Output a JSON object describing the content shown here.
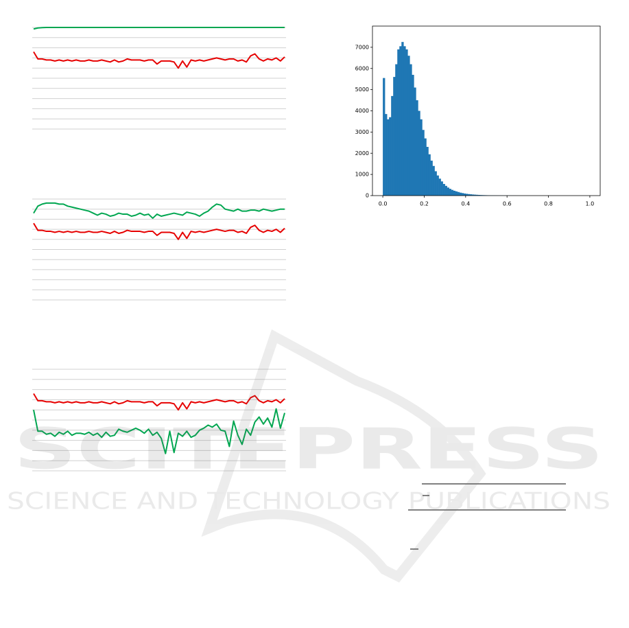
{
  "chart_data": [
    {
      "type": "line",
      "categories": [
        null,
        null,
        null,
        null,
        null,
        null,
        null,
        null,
        null,
        null,
        null,
        null,
        null,
        null,
        null,
        null,
        null,
        null,
        null,
        null,
        null,
        null,
        null,
        null,
        null,
        null,
        null,
        null,
        null,
        null,
        null,
        null,
        null,
        null,
        null,
        null,
        null,
        null,
        null,
        null,
        null,
        null,
        null,
        null,
        null,
        null,
        null,
        null,
        null,
        null,
        null,
        null,
        null,
        null,
        null,
        null,
        null,
        null,
        null,
        null
      ],
      "ylim": [
        0,
        10
      ],
      "yticks": [
        0,
        1,
        2,
        3,
        4,
        5,
        6,
        7,
        8,
        9,
        10
      ],
      "grid": true,
      "series": [
        {
          "color": "#00a650",
          "values": [
            9.85,
            9.95,
            9.98,
            10,
            10,
            10,
            10,
            10,
            10,
            10,
            10,
            10,
            10,
            10,
            10,
            10,
            10,
            10,
            10,
            10,
            10,
            10,
            10,
            10,
            10,
            10,
            10,
            10,
            10,
            10,
            10,
            10,
            10,
            10,
            10,
            10,
            10,
            10,
            10,
            10,
            10,
            10,
            10,
            10,
            10,
            10,
            10,
            10,
            10,
            10,
            10,
            10,
            10,
            10,
            10,
            10,
            10,
            10,
            10,
            10
          ]
        },
        {
          "color": "#e60000",
          "values": [
            7.6,
            6.9,
            6.9,
            6.8,
            6.8,
            6.7,
            6.8,
            6.7,
            6.8,
            6.7,
            6.8,
            6.7,
            6.7,
            6.8,
            6.7,
            6.7,
            6.8,
            6.7,
            6.6,
            6.8,
            6.6,
            6.7,
            6.9,
            6.8,
            6.8,
            6.8,
            6.7,
            6.8,
            6.8,
            6.4,
            6.7,
            6.7,
            6.7,
            6.6,
            6.0,
            6.7,
            6.1,
            6.8,
            6.7,
            6.8,
            6.7,
            6.8,
            6.9,
            7.0,
            6.9,
            6.8,
            6.9,
            6.9,
            6.7,
            6.8,
            6.6,
            7.2,
            7.4,
            6.9,
            6.7,
            6.9,
            6.8,
            7.0,
            6.7,
            7.1
          ]
        }
      ]
    },
    {
      "type": "line",
      "categories": [
        null,
        null,
        null,
        null,
        null,
        null,
        null,
        null,
        null,
        null,
        null,
        null,
        null,
        null,
        null,
        null,
        null,
        null,
        null,
        null,
        null,
        null,
        null,
        null,
        null,
        null,
        null,
        null,
        null,
        null,
        null,
        null,
        null,
        null,
        null,
        null,
        null,
        null,
        null,
        null,
        null,
        null,
        null,
        null,
        null,
        null,
        null,
        null,
        null,
        null,
        null,
        null,
        null,
        null,
        null,
        null,
        null,
        null,
        null,
        null
      ],
      "ylim": [
        0,
        10
      ],
      "yticks": [
        0,
        1,
        2,
        3,
        4,
        5,
        6,
        7,
        8,
        9,
        10
      ],
      "grid": true,
      "series": [
        {
          "color": "#00a650",
          "values": [
            8.6,
            9.3,
            9.5,
            9.6,
            9.6,
            9.6,
            9.5,
            9.5,
            9.3,
            9.2,
            9.1,
            9.0,
            8.9,
            8.8,
            8.6,
            8.4,
            8.6,
            8.5,
            8.3,
            8.4,
            8.6,
            8.5,
            8.5,
            8.3,
            8.4,
            8.6,
            8.4,
            8.5,
            8.1,
            8.5,
            8.3,
            8.4,
            8.5,
            8.6,
            8.5,
            8.4,
            8.7,
            8.6,
            8.5,
            8.3,
            8.6,
            8.8,
            9.2,
            9.5,
            9.4,
            9.0,
            8.9,
            8.8,
            9.0,
            8.8,
            8.8,
            8.9,
            8.9,
            8.8,
            9.0,
            8.9,
            8.8,
            8.9,
            9.0,
            9.0
          ]
        },
        {
          "color": "#e60000",
          "values": [
            7.6,
            6.9,
            6.9,
            6.8,
            6.8,
            6.7,
            6.8,
            6.7,
            6.8,
            6.7,
            6.8,
            6.7,
            6.7,
            6.8,
            6.7,
            6.7,
            6.8,
            6.7,
            6.6,
            6.8,
            6.6,
            6.7,
            6.9,
            6.8,
            6.8,
            6.8,
            6.7,
            6.8,
            6.8,
            6.4,
            6.7,
            6.7,
            6.7,
            6.6,
            6.0,
            6.7,
            6.1,
            6.8,
            6.7,
            6.8,
            6.7,
            6.8,
            6.9,
            7.0,
            6.9,
            6.8,
            6.9,
            6.9,
            6.7,
            6.8,
            6.6,
            7.2,
            7.4,
            6.9,
            6.7,
            6.9,
            6.8,
            7.0,
            6.7,
            7.1
          ]
        }
      ]
    },
    {
      "type": "line",
      "categories": [
        null,
        null,
        null,
        null,
        null,
        null,
        null,
        null,
        null,
        null,
        null,
        null,
        null,
        null,
        null,
        null,
        null,
        null,
        null,
        null,
        null,
        null,
        null,
        null,
        null,
        null,
        null,
        null,
        null,
        null,
        null,
        null,
        null,
        null,
        null,
        null,
        null,
        null,
        null,
        null,
        null,
        null,
        null,
        null,
        null,
        null,
        null,
        null,
        null,
        null,
        null,
        null,
        null,
        null,
        null,
        null,
        null,
        null,
        null,
        null
      ],
      "ylim": [
        0,
        10
      ],
      "yticks": [
        0,
        1,
        2,
        3,
        4,
        5,
        6,
        7,
        8,
        9,
        10
      ],
      "grid": true,
      "series": [
        {
          "color": "#e60000",
          "values": [
            7.6,
            6.9,
            6.9,
            6.8,
            6.8,
            6.7,
            6.8,
            6.7,
            6.8,
            6.7,
            6.8,
            6.7,
            6.7,
            6.8,
            6.7,
            6.7,
            6.8,
            6.7,
            6.6,
            6.8,
            6.6,
            6.7,
            6.9,
            6.8,
            6.8,
            6.8,
            6.7,
            6.8,
            6.8,
            6.4,
            6.7,
            6.7,
            6.7,
            6.6,
            6.0,
            6.7,
            6.1,
            6.8,
            6.7,
            6.8,
            6.7,
            6.8,
            6.9,
            7.0,
            6.9,
            6.8,
            6.9,
            6.9,
            6.7,
            6.8,
            6.6,
            7.2,
            7.4,
            6.9,
            6.7,
            6.9,
            6.8,
            7.0,
            6.7,
            7.1
          ]
        },
        {
          "color": "#00a650",
          "values": [
            6.0,
            3.9,
            3.9,
            3.6,
            3.7,
            3.4,
            3.8,
            3.6,
            3.9,
            3.5,
            3.7,
            3.7,
            3.6,
            3.8,
            3.5,
            3.7,
            3.3,
            3.8,
            3.4,
            3.5,
            4.1,
            3.9,
            3.8,
            4.0,
            4.2,
            4.0,
            3.7,
            4.1,
            3.5,
            3.8,
            3.2,
            1.7,
            3.9,
            1.8,
            3.7,
            3.4,
            3.9,
            3.3,
            3.5,
            4.0,
            4.2,
            4.5,
            4.3,
            4.6,
            4.0,
            3.9,
            2.4,
            4.9,
            3.5,
            2.6,
            4.1,
            3.5,
            4.8,
            5.3,
            4.6,
            5.2,
            4.3,
            6.1,
            4.2,
            5.7
          ]
        }
      ]
    },
    {
      "type": "histogram",
      "color": "#1f77b4",
      "bins": [
        0,
        0.01,
        0.02,
        0.03,
        0.04,
        0.05,
        0.06,
        0.07,
        0.08,
        0.09,
        0.1,
        0.11,
        0.12,
        0.13,
        0.14,
        0.15,
        0.16,
        0.17,
        0.18,
        0.19,
        0.2,
        0.21,
        0.22,
        0.23,
        0.24,
        0.25,
        0.26,
        0.27,
        0.28,
        0.29,
        0.3,
        0.31,
        0.32,
        0.33,
        0.34,
        0.35,
        0.36,
        0.37,
        0.38,
        0.39,
        0.4,
        0.41,
        0.42,
        0.43,
        0.44,
        0.45,
        0.46,
        0.47,
        0.48,
        0.49,
        0.5,
        0.51,
        0.52,
        0.53,
        0.54,
        0.55,
        0.56,
        0.57,
        0.58,
        0.59,
        0.6,
        0.61,
        0.62,
        0.63,
        0.64,
        0.65,
        0.66,
        0.67,
        0.68,
        0.69,
        0.7,
        0.71,
        0.72,
        0.73,
        0.74,
        0.75,
        0.76,
        0.77,
        0.78,
        0.79,
        0.8,
        0.81,
        0.82,
        0.83,
        0.84,
        0.85,
        0.86,
        0.87,
        0.88,
        0.89,
        0.9,
        0.91,
        0.92,
        0.93,
        0.94,
        0.95,
        0.96,
        0.97,
        0.98,
        0.99,
        1
      ],
      "values": [
        5550,
        3850,
        3600,
        3700,
        4700,
        5600,
        6200,
        6900,
        7050,
        7250,
        7050,
        6900,
        6600,
        6200,
        5700,
        5100,
        4500,
        4000,
        3600,
        3100,
        2700,
        2300,
        1950,
        1650,
        1400,
        1150,
        950,
        800,
        670,
        550,
        460,
        380,
        320,
        270,
        230,
        200,
        170,
        140,
        120,
        100,
        85,
        72,
        62,
        52,
        45,
        38,
        32,
        27,
        23,
        20,
        17,
        14,
        12,
        10,
        9,
        8,
        7,
        6,
        5,
        5,
        4,
        4,
        3,
        3,
        2,
        2,
        0,
        0,
        0,
        0,
        0,
        0,
        0,
        0,
        0,
        0,
        0,
        0,
        0,
        0,
        0,
        0,
        0,
        0,
        0,
        0,
        0,
        0,
        0,
        0,
        0,
        0,
        0,
        0,
        0,
        0,
        0,
        0,
        0,
        0
      ],
      "xlim": [
        -0.05,
        1.05
      ],
      "ylim": [
        0,
        8000
      ],
      "xticks": [
        {
          "value": 0,
          "label": "0.0"
        },
        0.2,
        0.4,
        0.6,
        0.8,
        {
          "value": 1,
          "label": "1.0"
        }
      ],
      "yticks": [
        0,
        1000,
        2000,
        3000,
        4000,
        5000,
        6000,
        7000
      ]
    }
  ],
  "watermark": {
    "title": "SCITEPRESS",
    "subtitle": "SCIENCE AND TECHNOLOGY PUBLICATIONS"
  }
}
